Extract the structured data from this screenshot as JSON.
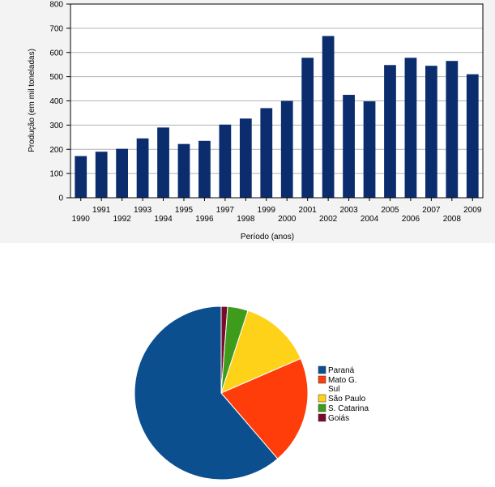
{
  "chart_data": [
    {
      "type": "bar",
      "xlabel": "Período (anos)",
      "ylabel": "Produção (em mil toneladas)",
      "ylim": [
        0,
        800
      ],
      "yticks": [
        0,
        100,
        200,
        300,
        400,
        500,
        600,
        700,
        800
      ],
      "grid": true,
      "bar_color": "#0b2d6e",
      "categories": [
        "1990",
        "1991",
        "1992",
        "1993",
        "1994",
        "1995",
        "1996",
        "1997",
        "1998",
        "1999",
        "2000",
        "2001",
        "2002",
        "2003",
        "2004",
        "2005",
        "2006",
        "2007",
        "2008",
        "2009"
      ],
      "values": [
        172,
        190,
        202,
        245,
        290,
        222,
        235,
        302,
        327,
        370,
        400,
        578,
        668,
        425,
        398,
        548,
        578,
        545,
        565,
        510
      ]
    },
    {
      "type": "pie",
      "labels": [
        "Paraná",
        "Mato G. Sul",
        "São Paulo",
        "S. Catarina",
        "Goiás"
      ],
      "legend_lines": [
        [
          "Paraná"
        ],
        [
          "Mato G.",
          "Sul"
        ],
        [
          "São Paulo"
        ],
        [
          "S. Catarina"
        ],
        [
          "Goiás"
        ]
      ],
      "values": [
        61.3,
        20.2,
        13.5,
        3.8,
        1.2
      ],
      "colors": [
        "#0b4f8f",
        "#ff3d0a",
        "#ffd21a",
        "#3f9b1c",
        "#7a0a2a"
      ],
      "legend_position": "right"
    }
  ]
}
